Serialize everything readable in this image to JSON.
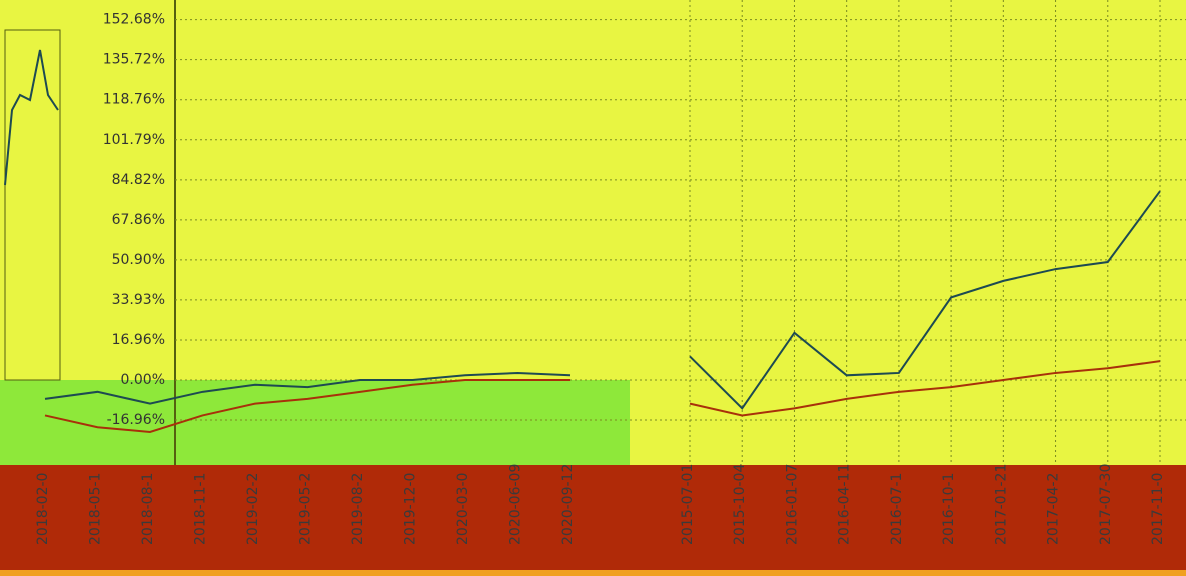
{
  "chart_data": [
    {
      "type": "line",
      "categories": [
        "2015-07-01",
        "2015-10-04",
        "2016-01-07",
        "2016-04-11",
        "2016-07-1",
        "2016-10-1",
        "2017-01-21",
        "2017-04-2",
        "2017-07-30",
        "2017-11-0"
      ],
      "series": [
        {
          "color": "#1d4a52",
          "values": [
            10,
            -12,
            20,
            2,
            3,
            35,
            42,
            47,
            50,
            80
          ]
        },
        {
          "color": "#a8300a",
          "values": [
            -10,
            -15,
            -12,
            -8,
            -5,
            -3,
            0,
            3,
            5,
            8
          ]
        }
      ],
      "ylim": [
        -36,
        161
      ],
      "yticks": [
        {
          "value": -16.96,
          "label": "-16.96%"
        },
        {
          "value": 0,
          "label": "0.00%"
        },
        {
          "value": 16.96,
          "label": "16.96%"
        },
        {
          "value": 33.93,
          "label": "33.93%"
        },
        {
          "value": 50.9,
          "label": "50.90%"
        },
        {
          "value": 67.86,
          "label": "67.86%"
        },
        {
          "value": 84.82,
          "label": "84.82%"
        },
        {
          "value": 101.79,
          "label": "101.79%"
        },
        {
          "value": 118.76,
          "label": "118.76%"
        },
        {
          "value": 135.72,
          "label": "135.72%"
        },
        {
          "value": 152.68,
          "label": "152.68%"
        }
      ],
      "grid": true
    },
    {
      "type": "line",
      "categories": [
        "2018-02-0",
        "2018-05-1",
        "2018-08-1",
        "2018-11-1",
        "2019-02-2",
        "2019-05-2",
        "2019-08-2",
        "2019-12-0",
        "2020-03-0",
        "2020-06-09",
        "2020-09-12"
      ],
      "series": [
        {
          "color": "#1d4a52",
          "values": [
            -8,
            -5,
            -10,
            -5,
            -2,
            -3,
            0,
            0,
            2,
            3,
            2
          ]
        },
        {
          "color": "#a8300a",
          "values": [
            -15,
            -20,
            -22,
            -15,
            -10,
            -8,
            -5,
            -2,
            0,
            0,
            0
          ]
        }
      ]
    }
  ]
}
